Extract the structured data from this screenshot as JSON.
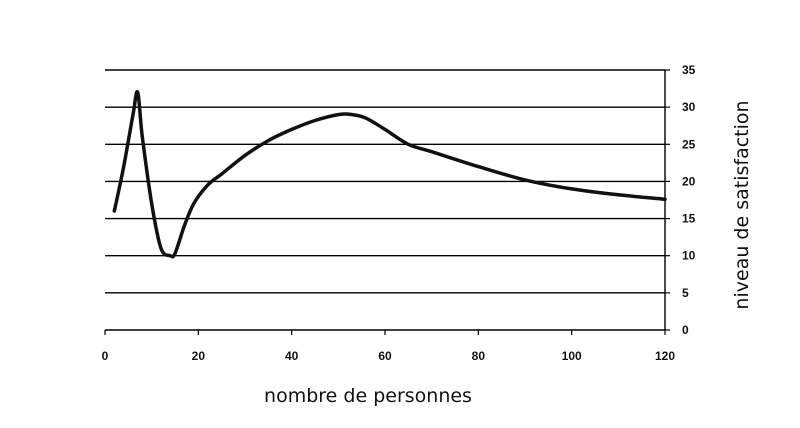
{
  "chart_data": {
    "type": "line",
    "title": "",
    "xlabel": "nombre de personnes",
    "ylabel": "niveau de satisfaction",
    "xlim": [
      0,
      120
    ],
    "ylim": [
      0,
      35
    ],
    "x_ticks": [
      0,
      20,
      40,
      60,
      80,
      100,
      120
    ],
    "y_ticks": [
      0,
      5,
      10,
      15,
      20,
      25,
      30,
      35
    ],
    "grid": "horizontal",
    "y_axis_position": "right",
    "legend": "none",
    "series": [
      {
        "x": [
          2,
          4,
          6,
          7,
          8,
          10,
          12,
          14,
          15,
          17,
          19,
          22,
          25,
          30,
          35,
          40,
          45,
          50,
          53,
          56,
          60,
          65,
          70,
          80,
          90,
          100,
          110,
          120
        ],
        "y": [
          16,
          22,
          29,
          32,
          26,
          17,
          11,
          10,
          10.3,
          14,
          17,
          19.5,
          21,
          23.5,
          25.5,
          27,
          28.2,
          29,
          29,
          28.5,
          27,
          25,
          24,
          22,
          20.2,
          19,
          18.2,
          17.6
        ]
      }
    ]
  }
}
